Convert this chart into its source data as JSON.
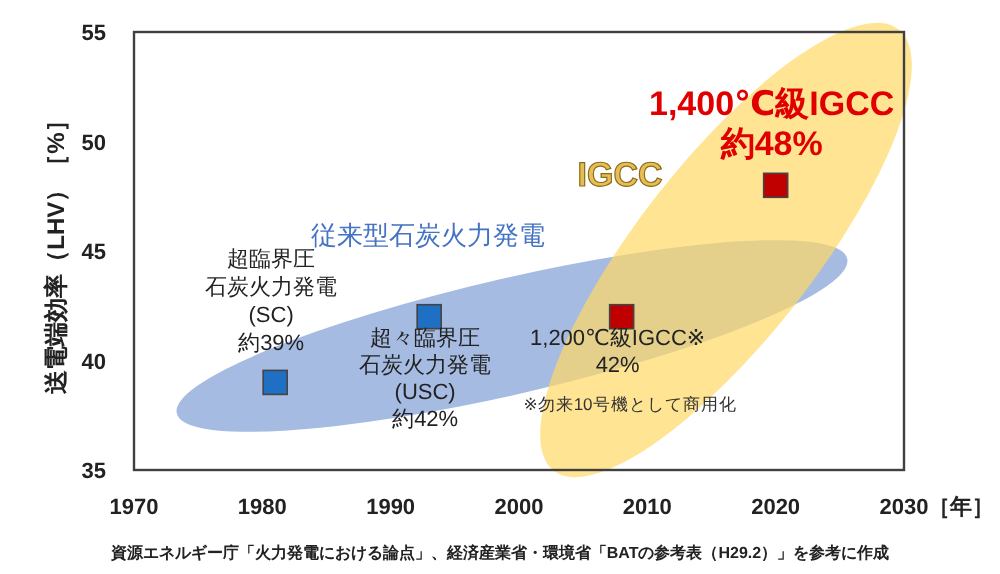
{
  "chart_data": {
    "type": "scatter",
    "ylabel": "送電端効率（LHV）［%］",
    "xlabel": "［年］",
    "series": [
      {
        "color": "#1f6fc5",
        "x": [
          1981,
          1993
        ],
        "values": [
          39,
          42
        ]
      },
      {
        "color": "#c00000",
        "x": [
          2008,
          2020
        ],
        "values": [
          42,
          48
        ]
      }
    ],
    "marker": "square",
    "xlim": [
      1970,
      2030
    ],
    "xticks": [
      1970,
      1980,
      1990,
      2000,
      2010,
      2020,
      2030
    ],
    "ylim": [
      35,
      55
    ],
    "yticks": [
      35,
      40,
      45,
      50,
      55
    ],
    "annotations": [
      {
        "text": "超臨界圧石炭火力発電\n(SC)\n約39%",
        "x": 1981,
        "y": 39
      },
      {
        "text": "超々臨界圧石炭火力発電\n(USC)\n約42%",
        "x": 1993,
        "y": 42
      },
      {
        "text": "1,200℃級IGCC※\n42%",
        "x": 2008,
        "y": 42
      },
      "※勿来10号機として商用化",
      {
        "text": "1,400℃級IGCC\n約48%",
        "x": 2020,
        "y": 48
      },
      "従来型石炭火力発電",
      "IGCC",
      "資源エネルギー庁「火力発電における論点」、経済産業省・環境省「BATの参考表（H29.2）」を参考に作成"
    ]
  }
}
